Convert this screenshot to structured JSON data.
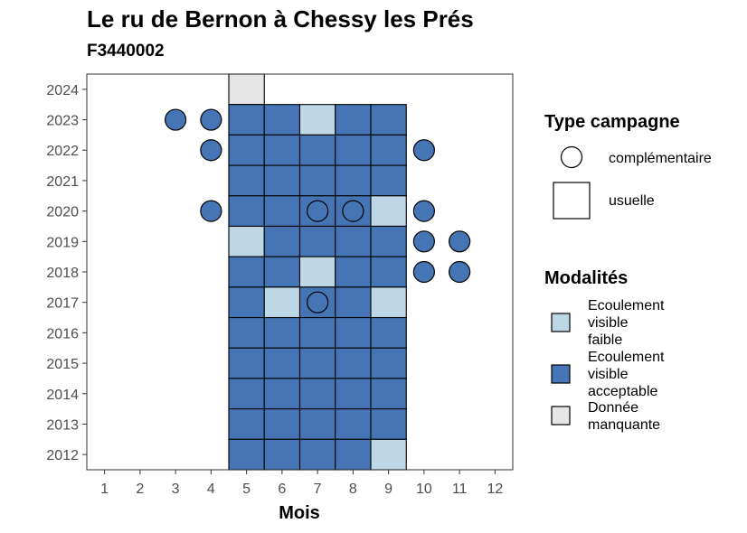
{
  "title": "Le ru de Bernon à Chessy les Prés",
  "subtitle": "F3440002",
  "chart_data": {
    "type": "heatmap",
    "xlabel": "Mois",
    "ylabel": "",
    "x_ticks": [
      1,
      2,
      3,
      4,
      5,
      6,
      7,
      8,
      9,
      10,
      11,
      12
    ],
    "y_ticks": [
      2012,
      2013,
      2014,
      2015,
      2016,
      2017,
      2018,
      2019,
      2020,
      2021,
      2022,
      2023,
      2024
    ],
    "xlim": [
      0.5,
      12.5
    ],
    "ylim": [
      2011.5,
      2024.5
    ],
    "grid": false,
    "colors": {
      "Ecoulement visible faible": "#bdd7e7",
      "Ecoulement visible acceptable": "#4575b4",
      "Donnée manquante": "#e5e5e5"
    },
    "usuelle": [
      {
        "year": 2024,
        "month": 5,
        "modalite": "Donnée manquante"
      },
      {
        "year": 2023,
        "month": 5,
        "modalite": "Ecoulement visible acceptable"
      },
      {
        "year": 2023,
        "month": 6,
        "modalite": "Ecoulement visible acceptable"
      },
      {
        "year": 2023,
        "month": 7,
        "modalite": "Ecoulement visible faible"
      },
      {
        "year": 2023,
        "month": 8,
        "modalite": "Ecoulement visible acceptable"
      },
      {
        "year": 2023,
        "month": 9,
        "modalite": "Ecoulement visible acceptable"
      },
      {
        "year": 2022,
        "month": 5,
        "modalite": "Ecoulement visible acceptable"
      },
      {
        "year": 2022,
        "month": 6,
        "modalite": "Ecoulement visible acceptable"
      },
      {
        "year": 2022,
        "month": 7,
        "modalite": "Ecoulement visible acceptable"
      },
      {
        "year": 2022,
        "month": 8,
        "modalite": "Ecoulement visible acceptable"
      },
      {
        "year": 2022,
        "month": 9,
        "modalite": "Ecoulement visible acceptable"
      },
      {
        "year": 2021,
        "month": 5,
        "modalite": "Ecoulement visible acceptable"
      },
      {
        "year": 2021,
        "month": 6,
        "modalite": "Ecoulement visible acceptable"
      },
      {
        "year": 2021,
        "month": 7,
        "modalite": "Ecoulement visible acceptable"
      },
      {
        "year": 2021,
        "month": 8,
        "modalite": "Ecoulement visible acceptable"
      },
      {
        "year": 2021,
        "month": 9,
        "modalite": "Ecoulement visible acceptable"
      },
      {
        "year": 2020,
        "month": 5,
        "modalite": "Ecoulement visible acceptable"
      },
      {
        "year": 2020,
        "month": 6,
        "modalite": "Ecoulement visible acceptable"
      },
      {
        "year": 2020,
        "month": 7,
        "modalite": "Ecoulement visible acceptable"
      },
      {
        "year": 2020,
        "month": 8,
        "modalite": "Ecoulement visible acceptable"
      },
      {
        "year": 2020,
        "month": 9,
        "modalite": "Ecoulement visible faible"
      },
      {
        "year": 2019,
        "month": 5,
        "modalite": "Ecoulement visible faible"
      },
      {
        "year": 2019,
        "month": 6,
        "modalite": "Ecoulement visible acceptable"
      },
      {
        "year": 2019,
        "month": 7,
        "modalite": "Ecoulement visible acceptable"
      },
      {
        "year": 2019,
        "month": 8,
        "modalite": "Ecoulement visible acceptable"
      },
      {
        "year": 2019,
        "month": 9,
        "modalite": "Ecoulement visible acceptable"
      },
      {
        "year": 2018,
        "month": 5,
        "modalite": "Ecoulement visible acceptable"
      },
      {
        "year": 2018,
        "month": 6,
        "modalite": "Ecoulement visible acceptable"
      },
      {
        "year": 2018,
        "month": 7,
        "modalite": "Ecoulement visible faible"
      },
      {
        "year": 2018,
        "month": 8,
        "modalite": "Ecoulement visible acceptable"
      },
      {
        "year": 2018,
        "month": 9,
        "modalite": "Ecoulement visible acceptable"
      },
      {
        "year": 2017,
        "month": 5,
        "modalite": "Ecoulement visible acceptable"
      },
      {
        "year": 2017,
        "month": 6,
        "modalite": "Ecoulement visible faible"
      },
      {
        "year": 2017,
        "month": 7,
        "modalite": "Ecoulement visible acceptable"
      },
      {
        "year": 2017,
        "month": 8,
        "modalite": "Ecoulement visible acceptable"
      },
      {
        "year": 2017,
        "month": 9,
        "modalite": "Ecoulement visible faible"
      },
      {
        "year": 2016,
        "month": 5,
        "modalite": "Ecoulement visible acceptable"
      },
      {
        "year": 2016,
        "month": 6,
        "modalite": "Ecoulement visible acceptable"
      },
      {
        "year": 2016,
        "month": 7,
        "modalite": "Ecoulement visible acceptable"
      },
      {
        "year": 2016,
        "month": 8,
        "modalite": "Ecoulement visible acceptable"
      },
      {
        "year": 2016,
        "month": 9,
        "modalite": "Ecoulement visible acceptable"
      },
      {
        "year": 2015,
        "month": 5,
        "modalite": "Ecoulement visible acceptable"
      },
      {
        "year": 2015,
        "month": 6,
        "modalite": "Ecoulement visible acceptable"
      },
      {
        "year": 2015,
        "month": 7,
        "modalite": "Ecoulement visible acceptable"
      },
      {
        "year": 2015,
        "month": 8,
        "modalite": "Ecoulement visible acceptable"
      },
      {
        "year": 2015,
        "month": 9,
        "modalite": "Ecoulement visible acceptable"
      },
      {
        "year": 2014,
        "month": 5,
        "modalite": "Ecoulement visible acceptable"
      },
      {
        "year": 2014,
        "month": 6,
        "modalite": "Ecoulement visible acceptable"
      },
      {
        "year": 2014,
        "month": 7,
        "modalite": "Ecoulement visible acceptable"
      },
      {
        "year": 2014,
        "month": 8,
        "modalite": "Ecoulement visible acceptable"
      },
      {
        "year": 2014,
        "month": 9,
        "modalite": "Ecoulement visible acceptable"
      },
      {
        "year": 2013,
        "month": 5,
        "modalite": "Ecoulement visible acceptable"
      },
      {
        "year": 2013,
        "month": 6,
        "modalite": "Ecoulement visible acceptable"
      },
      {
        "year": 2013,
        "month": 7,
        "modalite": "Ecoulement visible acceptable"
      },
      {
        "year": 2013,
        "month": 8,
        "modalite": "Ecoulement visible acceptable"
      },
      {
        "year": 2013,
        "month": 9,
        "modalite": "Ecoulement visible acceptable"
      },
      {
        "year": 2012,
        "month": 5,
        "modalite": "Ecoulement visible acceptable"
      },
      {
        "year": 2012,
        "month": 6,
        "modalite": "Ecoulement visible acceptable"
      },
      {
        "year": 2012,
        "month": 7,
        "modalite": "Ecoulement visible acceptable"
      },
      {
        "year": 2012,
        "month": 8,
        "modalite": "Ecoulement visible acceptable"
      },
      {
        "year": 2012,
        "month": 9,
        "modalite": "Ecoulement visible faible"
      }
    ],
    "complementaire": [
      {
        "year": 2023,
        "month": 3,
        "modalite": "Ecoulement visible acceptable"
      },
      {
        "year": 2023,
        "month": 4,
        "modalite": "Ecoulement visible acceptable"
      },
      {
        "year": 2022,
        "month": 4,
        "modalite": "Ecoulement visible acceptable"
      },
      {
        "year": 2022,
        "month": 10,
        "modalite": "Ecoulement visible acceptable"
      },
      {
        "year": 2020,
        "month": 4,
        "modalite": "Ecoulement visible acceptable"
      },
      {
        "year": 2020,
        "month": 7,
        "modalite": "Ecoulement visible acceptable"
      },
      {
        "year": 2020,
        "month": 8,
        "modalite": "Ecoulement visible acceptable"
      },
      {
        "year": 2020,
        "month": 10,
        "modalite": "Ecoulement visible acceptable"
      },
      {
        "year": 2019,
        "month": 10,
        "modalite": "Ecoulement visible acceptable"
      },
      {
        "year": 2019,
        "month": 11,
        "modalite": "Ecoulement visible acceptable"
      },
      {
        "year": 2018,
        "month": 10,
        "modalite": "Ecoulement visible acceptable"
      },
      {
        "year": 2018,
        "month": 11,
        "modalite": "Ecoulement visible acceptable"
      },
      {
        "year": 2017,
        "month": 7,
        "modalite": "Ecoulement visible acceptable"
      }
    ],
    "legend_type": {
      "title": "Type campagne",
      "items": [
        "complémentaire",
        "usuelle"
      ]
    },
    "legend_modalites": {
      "title": "Modalités",
      "items": [
        {
          "lines": [
            "Ecoulement",
            "visible",
            "faible"
          ],
          "modalite": "Ecoulement visible faible"
        },
        {
          "lines": [
            "Ecoulement",
            "visible",
            "acceptable"
          ],
          "modalite": "Ecoulement visible acceptable"
        },
        {
          "lines": [
            "Donnée",
            "manquante"
          ],
          "modalite": "Donnée manquante"
        }
      ]
    }
  }
}
